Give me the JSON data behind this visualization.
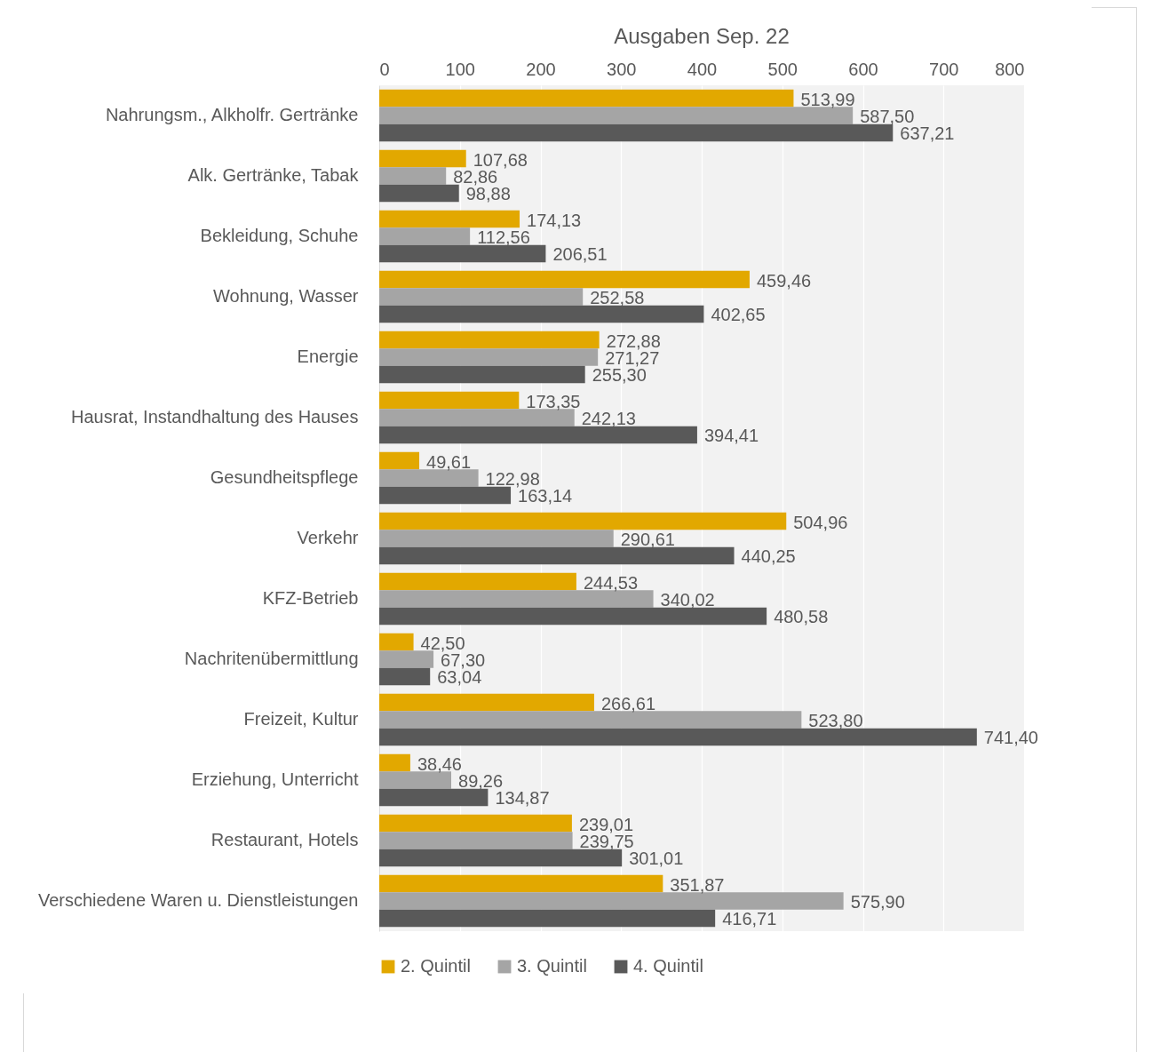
{
  "chart_data": {
    "type": "bar",
    "orientation": "horizontal",
    "title": "Ausgaben Sep. 22",
    "categories": [
      "Nahrungsm., Alkholfr. Gertränke",
      "Alk. Gertränke, Tabak",
      "Bekleidung, Schuhe",
      "Wohnung, Wasser",
      "Energie",
      "Hausrat, Instandhaltung des Hauses",
      "Gesundheitspflege",
      "Verkehr",
      "KFZ-Betrieb",
      "Nachritenübermittlung",
      "Freizeit, Kultur",
      "Erziehung, Unterricht",
      "Restaurant, Hotels",
      "Verschiedene Waren u. Dienstleistungen"
    ],
    "series": [
      {
        "name": "2. Quintil",
        "color": "#e2a800",
        "values": [
          513.99,
          107.68,
          174.13,
          459.46,
          272.88,
          173.35,
          49.61,
          504.96,
          244.53,
          42.5,
          266.61,
          38.46,
          239.01,
          351.87
        ],
        "value_labels": [
          "513,99",
          "107,68",
          "174,13",
          "459,46",
          "272,88",
          "173,35",
          "49,61",
          "504,96",
          "244,53",
          "42,50",
          "266,61",
          "38,46",
          "239,01",
          "351,87"
        ]
      },
      {
        "name": "3. Quintil",
        "color": "#a5a5a5",
        "values": [
          587.5,
          82.86,
          112.56,
          252.58,
          271.27,
          242.13,
          122.98,
          290.61,
          340.02,
          67.3,
          523.8,
          89.26,
          239.75,
          575.9
        ],
        "value_labels": [
          "587,50",
          "82,86",
          "112,56",
          "252,58",
          "271,27",
          "242,13",
          "122,98",
          "290,61",
          "340,02",
          "67,30",
          "523,80",
          "89,26",
          "239,75",
          "575,90"
        ]
      },
      {
        "name": "4. Quintil",
        "color": "#595959",
        "values": [
          637.21,
          98.88,
          206.51,
          402.65,
          255.3,
          394.41,
          163.14,
          440.25,
          480.58,
          63.04,
          741.4,
          134.87,
          301.01,
          416.71
        ],
        "value_labels": [
          "637,21",
          "98,88",
          "206,51",
          "402,65",
          "255,30",
          "394,41",
          "163,14",
          "440,25",
          "480,58",
          "63,04",
          "741,40",
          "134,87",
          "301,01",
          "416,71"
        ]
      }
    ],
    "xlim": [
      0,
      800
    ],
    "xticks": [
      0,
      100,
      200,
      300,
      400,
      500,
      600,
      700,
      800
    ],
    "grid": "x",
    "legend": "bottom"
  }
}
